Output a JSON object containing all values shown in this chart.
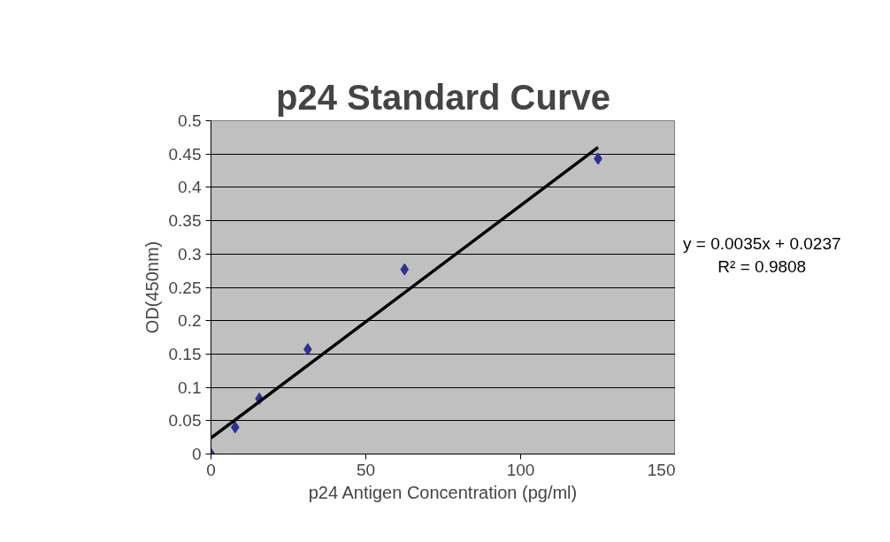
{
  "chart_data": {
    "type": "scatter",
    "title": "p24 Standard Curve",
    "xlabel": "p24 Antigen Concentration (pg/ml)",
    "ylabel": "OD(450nm)",
    "xlim": [
      0,
      150
    ],
    "xticks": [
      0,
      50,
      100,
      150
    ],
    "ylim": [
      0,
      0.5
    ],
    "yticks": [
      0,
      0.05,
      0.1,
      0.15,
      0.2,
      0.25,
      0.3,
      0.35,
      0.4,
      0.45,
      0.5
    ],
    "grid": "y",
    "marker": "diamond",
    "series": [
      {
        "color": "#2e3192",
        "x": [
          0,
          7.8,
          15.6,
          31.25,
          62.5,
          125
        ],
        "values": [
          0,
          0.04,
          0.083,
          0.157,
          0.277,
          0.443
        ]
      },
      {
        "type": "line",
        "color": "#000000",
        "marker": "none",
        "x": [
          0,
          125
        ],
        "values": [
          0.024,
          0.46
        ]
      }
    ],
    "annotations": [
      "y = 0.0035x + 0.0237",
      "R² = 0.9808"
    ]
  }
}
